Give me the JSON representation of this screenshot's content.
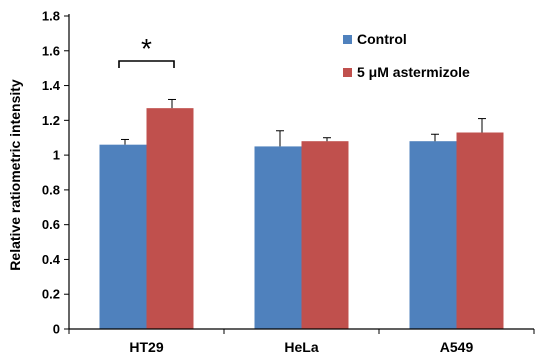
{
  "chart_data": {
    "type": "bar",
    "title": "",
    "xlabel": "",
    "ylabel": "Relative ratiometric intensity",
    "ylim": [
      0,
      1.8
    ],
    "yticks": [
      "0",
      "0.2",
      "0.4",
      "0.6",
      "0.8",
      "1",
      "1.2",
      "1.4",
      "1.6",
      "1.8"
    ],
    "categories": [
      "HT29",
      "HeLa",
      "A549"
    ],
    "grid": false,
    "legend_position": "top-right",
    "series": [
      {
        "name": "Control",
        "color": "#4F81BD",
        "values": [
          1.06,
          1.05,
          1.08
        ],
        "errors": [
          0.03,
          0.09,
          0.04
        ]
      },
      {
        "name": "5 μM astermizole",
        "color": "#C0504D",
        "values": [
          1.27,
          1.08,
          1.13
        ],
        "errors": [
          0.05,
          0.02,
          0.08
        ]
      }
    ],
    "annotations": [
      {
        "text": "*",
        "category": "HT29",
        "between_series": [
          0,
          1
        ]
      }
    ]
  }
}
